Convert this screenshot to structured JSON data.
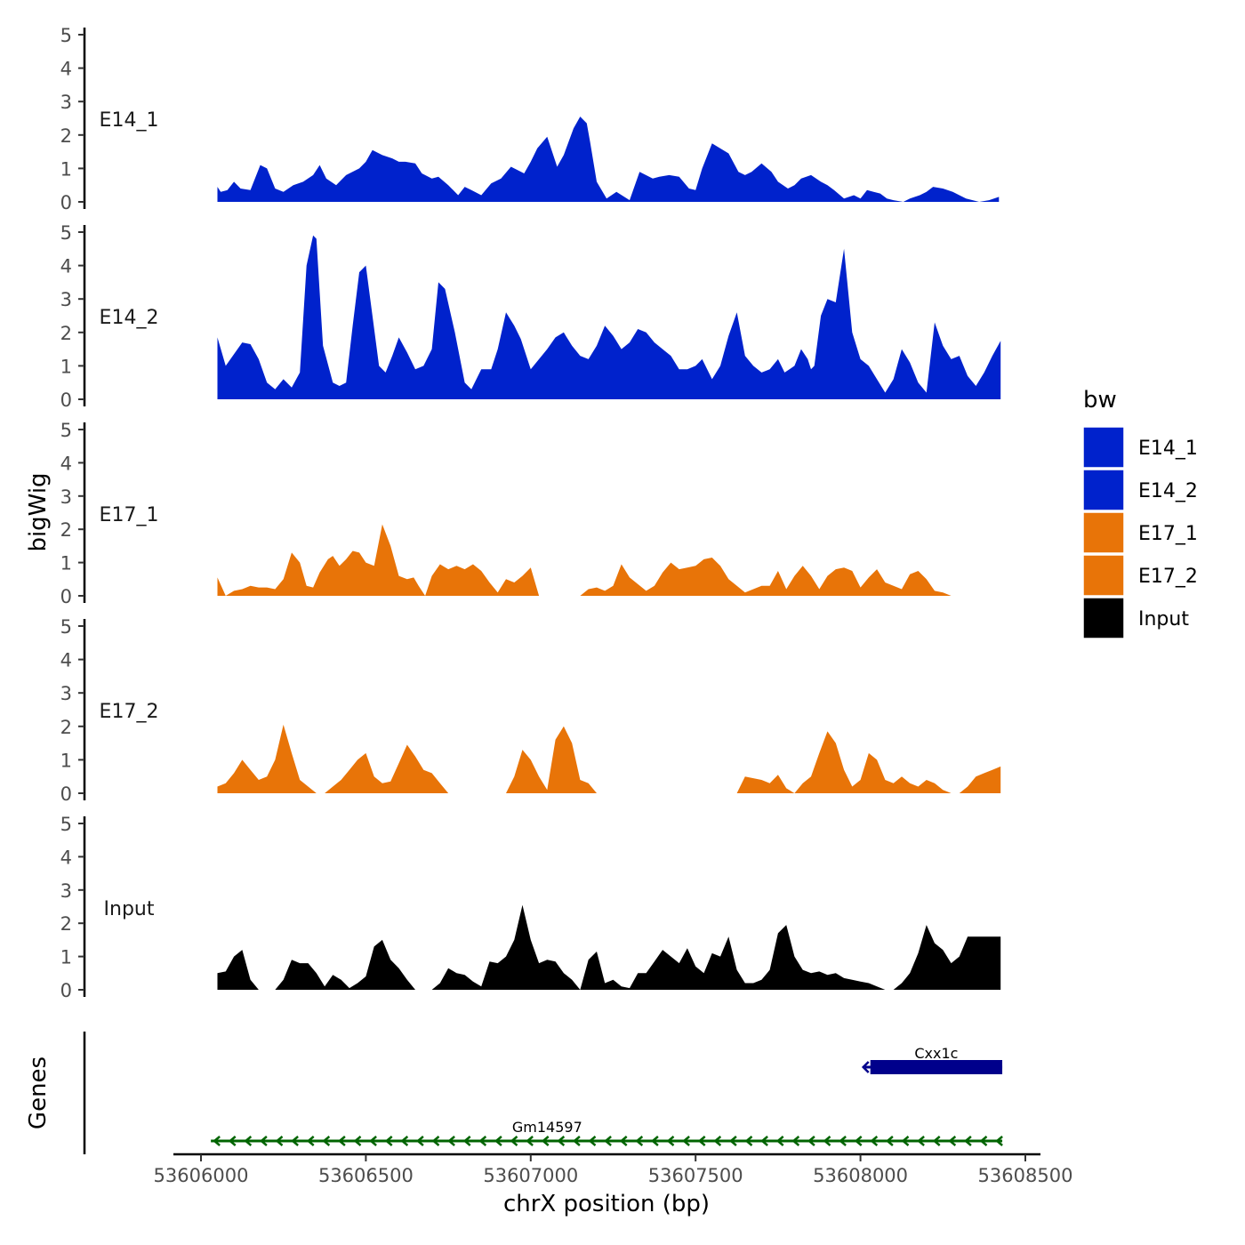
{
  "chart_data": {
    "type": "area",
    "y_axis_label": "bigWig",
    "genes_axis_label": "Genes",
    "x_axis_label": "chrX position (bp)",
    "xlim": [
      53605900,
      53608550
    ],
    "xticks": [
      53606000,
      53606500,
      53607000,
      53607500,
      53608000,
      53608500
    ],
    "xtick_labels": [
      "53606000",
      "53606500",
      "53607000",
      "53607500",
      "53608000",
      "53608500"
    ],
    "ylim": [
      0,
      5
    ],
    "yticks": [
      0,
      1,
      2,
      3,
      4,
      5
    ],
    "ytick_labels": [
      "0",
      "1",
      "2",
      "3",
      "4",
      "5"
    ],
    "legend": {
      "title": "bw",
      "placement": "right",
      "items": [
        {
          "label": "E14_1",
          "color": "#0022CC"
        },
        {
          "label": "E14_2",
          "color": "#0022CC"
        },
        {
          "label": "E17_1",
          "color": "#E87408"
        },
        {
          "label": "E17_2",
          "color": "#E87408"
        },
        {
          "label": "Input",
          "color": "#000000"
        }
      ]
    },
    "tracks": [
      {
        "name": "E14_1",
        "color": "#0022CC",
        "x": [
          53606050,
          53606060,
          53606080,
          53606100,
          53606120,
          53606150,
          53606180,
          53606200,
          53606225,
          53606250,
          53606280,
          53606310,
          53606340,
          53606360,
          53606380,
          53606410,
          53606440,
          53606480,
          53606500,
          53606520,
          53606550,
          53606580,
          53606600,
          53606620,
          53606650,
          53606670,
          53606700,
          53606720,
          53606750,
          53606780,
          53606800,
          53606820,
          53606850,
          53606880,
          53606910,
          53606940,
          53606980,
          53607000,
          53607020,
          53607050,
          53607080,
          53607100,
          53607130,
          53607150,
          53607170,
          53607180,
          53607200,
          53607230,
          53607260,
          53607300,
          53607330,
          53607370,
          53607390,
          53607420,
          53607450,
          53607480,
          53607500,
          53607520,
          53607550,
          53607600,
          53607630,
          53607650,
          53607670,
          53607700,
          53607730,
          53607750,
          53607780,
          53607800,
          53607820,
          53607850,
          53607880,
          53607900,
          53607920,
          53607950,
          53607980,
          53608000,
          53608020,
          53608040,
          53608060,
          53608080,
          53608100,
          53608130,
          53608150,
          53608180,
          53608200,
          53608220,
          53608250,
          53608280,
          53608300,
          53608320,
          53608360,
          53608390,
          53608420
        ],
        "y": [
          0.45,
          0.3,
          0.35,
          0.6,
          0.4,
          0.35,
          1.1,
          1.0,
          0.4,
          0.3,
          0.5,
          0.6,
          0.8,
          1.1,
          0.7,
          0.5,
          0.8,
          1.0,
          1.2,
          1.55,
          1.4,
          1.3,
          1.2,
          1.2,
          1.15,
          0.85,
          0.7,
          0.75,
          0.5,
          0.2,
          0.45,
          0.35,
          0.2,
          0.55,
          0.7,
          1.05,
          0.85,
          1.2,
          1.6,
          1.95,
          1.05,
          1.4,
          2.2,
          2.55,
          2.35,
          1.8,
          0.6,
          0.1,
          0.3,
          0.05,
          0.9,
          0.7,
          0.75,
          0.8,
          0.75,
          0.4,
          0.35,
          1.0,
          1.75,
          1.45,
          0.9,
          0.8,
          0.9,
          1.15,
          0.9,
          0.6,
          0.4,
          0.5,
          0.7,
          0.8,
          0.6,
          0.5,
          0.35,
          0.1,
          0.2,
          0.1,
          0.35,
          0.3,
          0.25,
          0.1,
          0.05,
          0.0,
          0.1,
          0.2,
          0.3,
          0.45,
          0.4,
          0.3,
          0.2,
          0.1,
          0.0,
          0.05,
          0.15
        ]
      },
      {
        "name": "E14_2",
        "color": "#0022CC",
        "x": [
          53606050,
          53606075,
          53606100,
          53606125,
          53606150,
          53606175,
          53606200,
          53606225,
          53606250,
          53606275,
          53606300,
          53606320,
          53606340,
          53606350,
          53606370,
          53606400,
          53606420,
          53606440,
          53606460,
          53606480,
          53606500,
          53606520,
          53606540,
          53606560,
          53606580,
          53606600,
          53606625,
          53606650,
          53606675,
          53606700,
          53606720,
          53606740,
          53606770,
          53606800,
          53606820,
          53606850,
          53606880,
          53606900,
          53606925,
          53606950,
          53606970,
          53607000,
          53607025,
          53607050,
          53607075,
          53607100,
          53607125,
          53607150,
          53607175,
          53607200,
          53607225,
          53607250,
          53607275,
          53607300,
          53607325,
          53607350,
          53607375,
          53607400,
          53607425,
          53607450,
          53607475,
          53607500,
          53607520,
          53607550,
          53607575,
          53607600,
          53607625,
          53607650,
          53607675,
          53607700,
          53607725,
          53607750,
          53607770,
          53607800,
          53607820,
          53607840,
          53607850,
          53607860,
          53607880,
          53607900,
          53607925,
          53607950,
          53607975,
          53608000,
          53608025,
          53608050,
          53608075,
          53608100,
          53608125,
          53608150,
          53608175,
          53608200,
          53608225,
          53608250,
          53608275,
          53608300,
          53608325,
          53608350,
          53608375,
          53608400,
          53608425
        ],
        "y": [
          1.85,
          1.0,
          1.35,
          1.7,
          1.65,
          1.2,
          0.5,
          0.3,
          0.6,
          0.35,
          0.8,
          4.0,
          4.9,
          4.8,
          1.6,
          0.5,
          0.4,
          0.5,
          2.2,
          3.8,
          4.0,
          2.5,
          1.0,
          0.8,
          1.3,
          1.85,
          1.4,
          0.9,
          1.0,
          1.5,
          3.5,
          3.3,
          2.0,
          0.5,
          0.3,
          0.9,
          0.9,
          1.5,
          2.6,
          2.2,
          1.8,
          0.9,
          1.2,
          1.5,
          1.85,
          2.0,
          1.6,
          1.3,
          1.2,
          1.6,
          2.2,
          1.9,
          1.5,
          1.7,
          2.1,
          2.0,
          1.7,
          1.5,
          1.3,
          0.9,
          0.9,
          1.0,
          1.2,
          0.6,
          1.0,
          1.9,
          2.6,
          1.3,
          1.0,
          0.8,
          0.9,
          1.2,
          0.8,
          1.0,
          1.5,
          1.2,
          0.9,
          1.0,
          2.5,
          3.0,
          2.9,
          4.5,
          2.0,
          1.2,
          1.0,
          0.6,
          0.2,
          0.6,
          1.5,
          1.1,
          0.5,
          0.2,
          2.3,
          1.6,
          1.2,
          1.3,
          0.7,
          0.4,
          0.8,
          1.3,
          1.75
        ]
      },
      {
        "name": "E17_1",
        "color": "#E87408",
        "x": [
          53606050,
          53606075,
          53606100,
          53606125,
          53606150,
          53606175,
          53606200,
          53606225,
          53606250,
          53606275,
          53606300,
          53606320,
          53606340,
          53606360,
          53606385,
          53606400,
          53606420,
          53606440,
          53606460,
          53606480,
          53606500,
          53606525,
          53606550,
          53606575,
          53606600,
          53606625,
          53606645,
          53606660,
          53606680,
          53606700,
          53606725,
          53606750,
          53606775,
          53606800,
          53606825,
          53606850,
          53606875,
          53606900,
          53606925,
          53606950,
          53606975,
          53607000,
          53607025,
          53607050,
          53607075,
          53607100,
          53607125,
          53607150,
          53607175,
          53607200,
          53607225,
          53607250,
          53607275,
          53607300,
          53607325,
          53607350,
          53607375,
          53607400,
          53607425,
          53607450,
          53607475,
          53607500,
          53607525,
          53607550,
          53607575,
          53607600,
          53607625,
          53607650,
          53607675,
          53607700,
          53607725,
          53607750,
          53607775,
          53607800,
          53607825,
          53607850,
          53607875,
          53607900,
          53607925,
          53607950,
          53607975,
          53608000,
          53608025,
          53608050,
          53608075,
          53608100,
          53608125,
          53608150,
          53608175,
          53608200,
          53608225,
          53608250,
          53608275,
          53608300,
          53608325,
          53608350,
          53608375,
          53608400,
          53608425
        ],
        "y": [
          0.55,
          0.0,
          0.15,
          0.2,
          0.3,
          0.25,
          0.25,
          0.2,
          0.5,
          1.3,
          1.0,
          0.3,
          0.25,
          0.7,
          1.1,
          1.2,
          0.9,
          1.1,
          1.35,
          1.3,
          1.0,
          0.9,
          2.15,
          1.5,
          0.6,
          0.5,
          0.55,
          0.3,
          0.0,
          0.6,
          0.95,
          0.8,
          0.9,
          0.8,
          0.95,
          0.75,
          0.4,
          0.1,
          0.5,
          0.4,
          0.6,
          0.85,
          0.0,
          0.0,
          0.0,
          0.0,
          0.0,
          0.0,
          0.2,
          0.25,
          0.15,
          0.3,
          0.95,
          0.55,
          0.35,
          0.15,
          0.3,
          0.7,
          1.0,
          0.8,
          0.85,
          0.9,
          1.1,
          1.15,
          0.9,
          0.5,
          0.3,
          0.1,
          0.2,
          0.3,
          0.3,
          0.75,
          0.2,
          0.6,
          0.9,
          0.6,
          0.2,
          0.6,
          0.8,
          0.85,
          0.75,
          0.25,
          0.55,
          0.8,
          0.4,
          0.3,
          0.2,
          0.65,
          0.75,
          0.5,
          0.15,
          0.1,
          0.0,
          0.0,
          0.0,
          0.0,
          0.0,
          0.0,
          0.0
        ]
      },
      {
        "name": "E17_2",
        "color": "#E87408",
        "x": [
          53606050,
          53606075,
          53606100,
          53606125,
          53606150,
          53606175,
          53606200,
          53606225,
          53606250,
          53606275,
          53606300,
          53606325,
          53606350,
          53606375,
          53606400,
          53606425,
          53606450,
          53606475,
          53606500,
          53606525,
          53606550,
          53606575,
          53606600,
          53606625,
          53606650,
          53606675,
          53606700,
          53606725,
          53606750,
          53606775,
          53606800,
          53606825,
          53606850,
          53606875,
          53606900,
          53606925,
          53606950,
          53606975,
          53607000,
          53607025,
          53607050,
          53607075,
          53607100,
          53607125,
          53607150,
          53607175,
          53607200,
          53607225,
          53607250,
          53607275,
          53607300,
          53607325,
          53607350,
          53607375,
          53607400,
          53607425,
          53607450,
          53607475,
          53607500,
          53607525,
          53607550,
          53607575,
          53607600,
          53607625,
          53607650,
          53607675,
          53607700,
          53607725,
          53607750,
          53607775,
          53607800,
          53607825,
          53607850,
          53607875,
          53607900,
          53607925,
          53607950,
          53607975,
          53608000,
          53608025,
          53608050,
          53608075,
          53608100,
          53608125,
          53608150,
          53608175,
          53608200,
          53608225,
          53608250,
          53608275,
          53608300,
          53608325,
          53608350,
          53608375,
          53608400,
          53608425
        ],
        "y": [
          0.2,
          0.3,
          0.6,
          1.0,
          0.7,
          0.4,
          0.5,
          1.0,
          2.05,
          1.2,
          0.4,
          0.2,
          0.0,
          0.0,
          0.2,
          0.4,
          0.7,
          1.0,
          1.2,
          0.5,
          0.3,
          0.35,
          0.9,
          1.45,
          1.1,
          0.7,
          0.6,
          0.3,
          0.0,
          0.0,
          0.0,
          0.0,
          0.0,
          0.0,
          0.0,
          0.0,
          0.5,
          1.3,
          1.0,
          0.5,
          0.1,
          1.6,
          2.0,
          1.5,
          0.4,
          0.3,
          0.0,
          0.0,
          0.0,
          0.0,
          0.0,
          0.0,
          0.0,
          0.0,
          0.0,
          0.0,
          0.0,
          0.0,
          0.0,
          0.0,
          0.0,
          0.0,
          0.0,
          0.0,
          0.5,
          0.45,
          0.4,
          0.3,
          0.55,
          0.15,
          0.0,
          0.3,
          0.5,
          1.2,
          1.85,
          1.5,
          0.7,
          0.2,
          0.4,
          1.2,
          1.0,
          0.4,
          0.3,
          0.5,
          0.3,
          0.2,
          0.4,
          0.3,
          0.1,
          0.0,
          0.0,
          0.2,
          0.5,
          0.6,
          0.7,
          0.8
        ]
      },
      {
        "name": "Input",
        "color": "#000000",
        "x": [
          53606050,
          53606075,
          53606100,
          53606125,
          53606150,
          53606175,
          53606200,
          53606225,
          53606250,
          53606275,
          53606300,
          53606325,
          53606350,
          53606375,
          53606400,
          53606425,
          53606450,
          53606475,
          53606500,
          53606525,
          53606550,
          53606575,
          53606600,
          53606625,
          53606650,
          53606675,
          53606700,
          53606725,
          53606750,
          53606775,
          53606800,
          53606825,
          53606850,
          53606875,
          53606900,
          53606925,
          53606950,
          53606975,
          53607000,
          53607025,
          53607050,
          53607075,
          53607100,
          53607125,
          53607150,
          53607175,
          53607200,
          53607225,
          53607250,
          53607275,
          53607300,
          53607325,
          53607350,
          53607375,
          53607400,
          53607425,
          53607450,
          53607475,
          53607500,
          53607525,
          53607550,
          53607575,
          53607600,
          53607625,
          53607650,
          53607675,
          53607700,
          53607725,
          53607750,
          53607775,
          53607800,
          53607825,
          53607850,
          53607875,
          53607900,
          53607925,
          53607950,
          53607975,
          53608000,
          53608025,
          53608050,
          53608075,
          53608100,
          53608125,
          53608150,
          53608175,
          53608200,
          53608225,
          53608250,
          53608275,
          53608300,
          53608325,
          53608350,
          53608375,
          53608400,
          53608425
        ],
        "y": [
          0.5,
          0.55,
          1.0,
          1.2,
          0.3,
          0.0,
          0.0,
          0.0,
          0.3,
          0.9,
          0.8,
          0.8,
          0.5,
          0.1,
          0.45,
          0.3,
          0.05,
          0.2,
          0.4,
          1.3,
          1.5,
          0.9,
          0.65,
          0.3,
          0.0,
          0.0,
          0.0,
          0.2,
          0.65,
          0.5,
          0.45,
          0.25,
          0.1,
          0.85,
          0.8,
          1.0,
          1.5,
          2.55,
          1.5,
          0.8,
          0.9,
          0.85,
          0.5,
          0.3,
          0.0,
          0.9,
          1.15,
          0.2,
          0.3,
          0.1,
          0.05,
          0.5,
          0.5,
          0.85,
          1.2,
          1.0,
          0.8,
          1.25,
          0.7,
          0.5,
          1.1,
          1.0,
          1.6,
          0.6,
          0.2,
          0.2,
          0.3,
          0.6,
          1.7,
          1.95,
          1.0,
          0.6,
          0.5,
          0.55,
          0.45,
          0.5,
          0.35,
          0.3,
          0.25,
          0.2,
          0.1,
          0.0,
          0.0,
          0.2,
          0.5,
          1.1,
          1.95,
          1.4,
          1.2,
          0.8,
          1.0,
          1.6,
          1.6,
          1.6,
          1.6,
          1.6
        ]
      }
    ],
    "genes": [
      {
        "name": "Gm14597",
        "start": 53606030,
        "end": 53608430,
        "strand": "-",
        "color": "#006400",
        "row": 2,
        "thick": false
      },
      {
        "name": "Cxx1c",
        "start": 53608030,
        "end": 53608430,
        "strand": "-",
        "color": "#00008B",
        "row": 1,
        "thick": true
      }
    ]
  }
}
